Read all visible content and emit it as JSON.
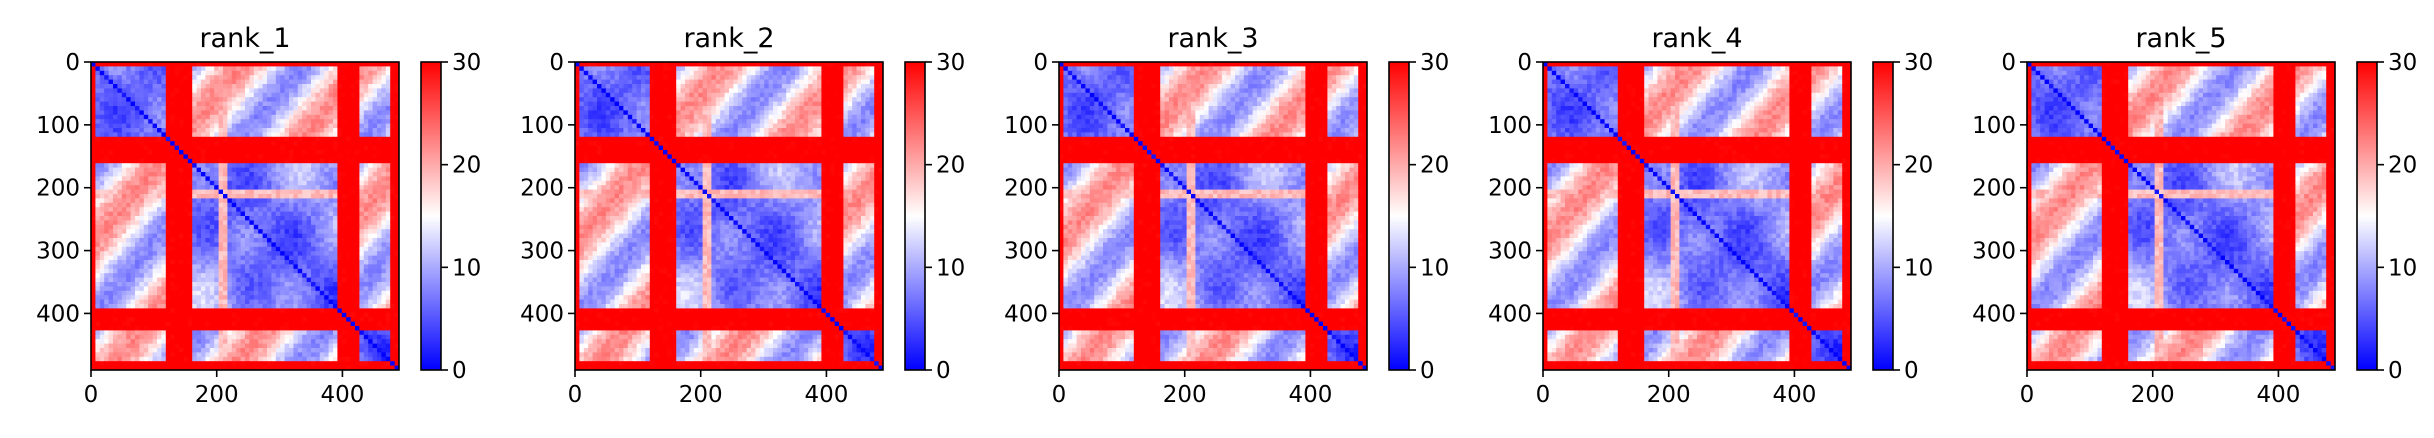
{
  "chart_data": [
    {
      "type": "heatmap",
      "title": "rank_1",
      "xlim": [
        0,
        490
      ],
      "ylim": [
        490,
        0
      ],
      "xticks": [
        "0",
        "200",
        "400"
      ],
      "xtick_values": [
        0,
        200,
        400
      ],
      "yticks": [
        "0",
        "100",
        "200",
        "300",
        "400"
      ],
      "ytick_values": [
        0,
        100,
        200,
        300,
        400
      ],
      "colorbar": {
        "min": 0,
        "max": 30,
        "ticks": [
          "0",
          "10",
          "20",
          "30"
        ],
        "tick_values": [
          0,
          10,
          20,
          30
        ],
        "colormap": "bwr"
      }
    },
    {
      "type": "heatmap",
      "title": "rank_2",
      "xlim": [
        0,
        490
      ],
      "ylim": [
        490,
        0
      ],
      "xticks": [
        "0",
        "200",
        "400"
      ],
      "xtick_values": [
        0,
        200,
        400
      ],
      "yticks": [
        "0",
        "100",
        "200",
        "300",
        "400"
      ],
      "ytick_values": [
        0,
        100,
        200,
        300,
        400
      ],
      "colorbar": {
        "min": 0,
        "max": 30,
        "ticks": [
          "0",
          "10",
          "20",
          "30"
        ],
        "tick_values": [
          0,
          10,
          20,
          30
        ],
        "colormap": "bwr"
      }
    },
    {
      "type": "heatmap",
      "title": "rank_3",
      "xlim": [
        0,
        490
      ],
      "ylim": [
        490,
        0
      ],
      "xticks": [
        "0",
        "200",
        "400"
      ],
      "xtick_values": [
        0,
        200,
        400
      ],
      "yticks": [
        "0",
        "100",
        "200",
        "300",
        "400"
      ],
      "ytick_values": [
        0,
        100,
        200,
        300,
        400
      ],
      "colorbar": {
        "min": 0,
        "max": 30,
        "ticks": [
          "0",
          "10",
          "20",
          "30"
        ],
        "tick_values": [
          0,
          10,
          20,
          30
        ],
        "colormap": "bwr"
      }
    },
    {
      "type": "heatmap",
      "title": "rank_4",
      "xlim": [
        0,
        490
      ],
      "ylim": [
        490,
        0
      ],
      "xticks": [
        "0",
        "200",
        "400"
      ],
      "xtick_values": [
        0,
        200,
        400
      ],
      "yticks": [
        "0",
        "100",
        "200",
        "300",
        "400"
      ],
      "ytick_values": [
        0,
        100,
        200,
        300,
        400
      ],
      "colorbar": {
        "min": 0,
        "max": 30,
        "ticks": [
          "0",
          "10",
          "20",
          "30"
        ],
        "tick_values": [
          0,
          10,
          20,
          30
        ],
        "colormap": "bwr"
      }
    },
    {
      "type": "heatmap",
      "title": "rank_5",
      "xlim": [
        0,
        490
      ],
      "ylim": [
        490,
        0
      ],
      "xticks": [
        "0",
        "200",
        "400"
      ],
      "xtick_values": [
        0,
        200,
        400
      ],
      "yticks": [
        "0",
        "100",
        "200",
        "300",
        "400"
      ],
      "ytick_values": [
        0,
        100,
        200,
        300,
        400
      ],
      "colorbar": {
        "min": 0,
        "max": 30,
        "ticks": [
          "0",
          "10",
          "20",
          "30"
        ],
        "tick_values": [
          0,
          10,
          20,
          30
        ],
        "colormap": "bwr"
      }
    }
  ],
  "colors": {
    "low": "#0000ff",
    "mid": "#ffffff",
    "high": "#ff0000"
  }
}
